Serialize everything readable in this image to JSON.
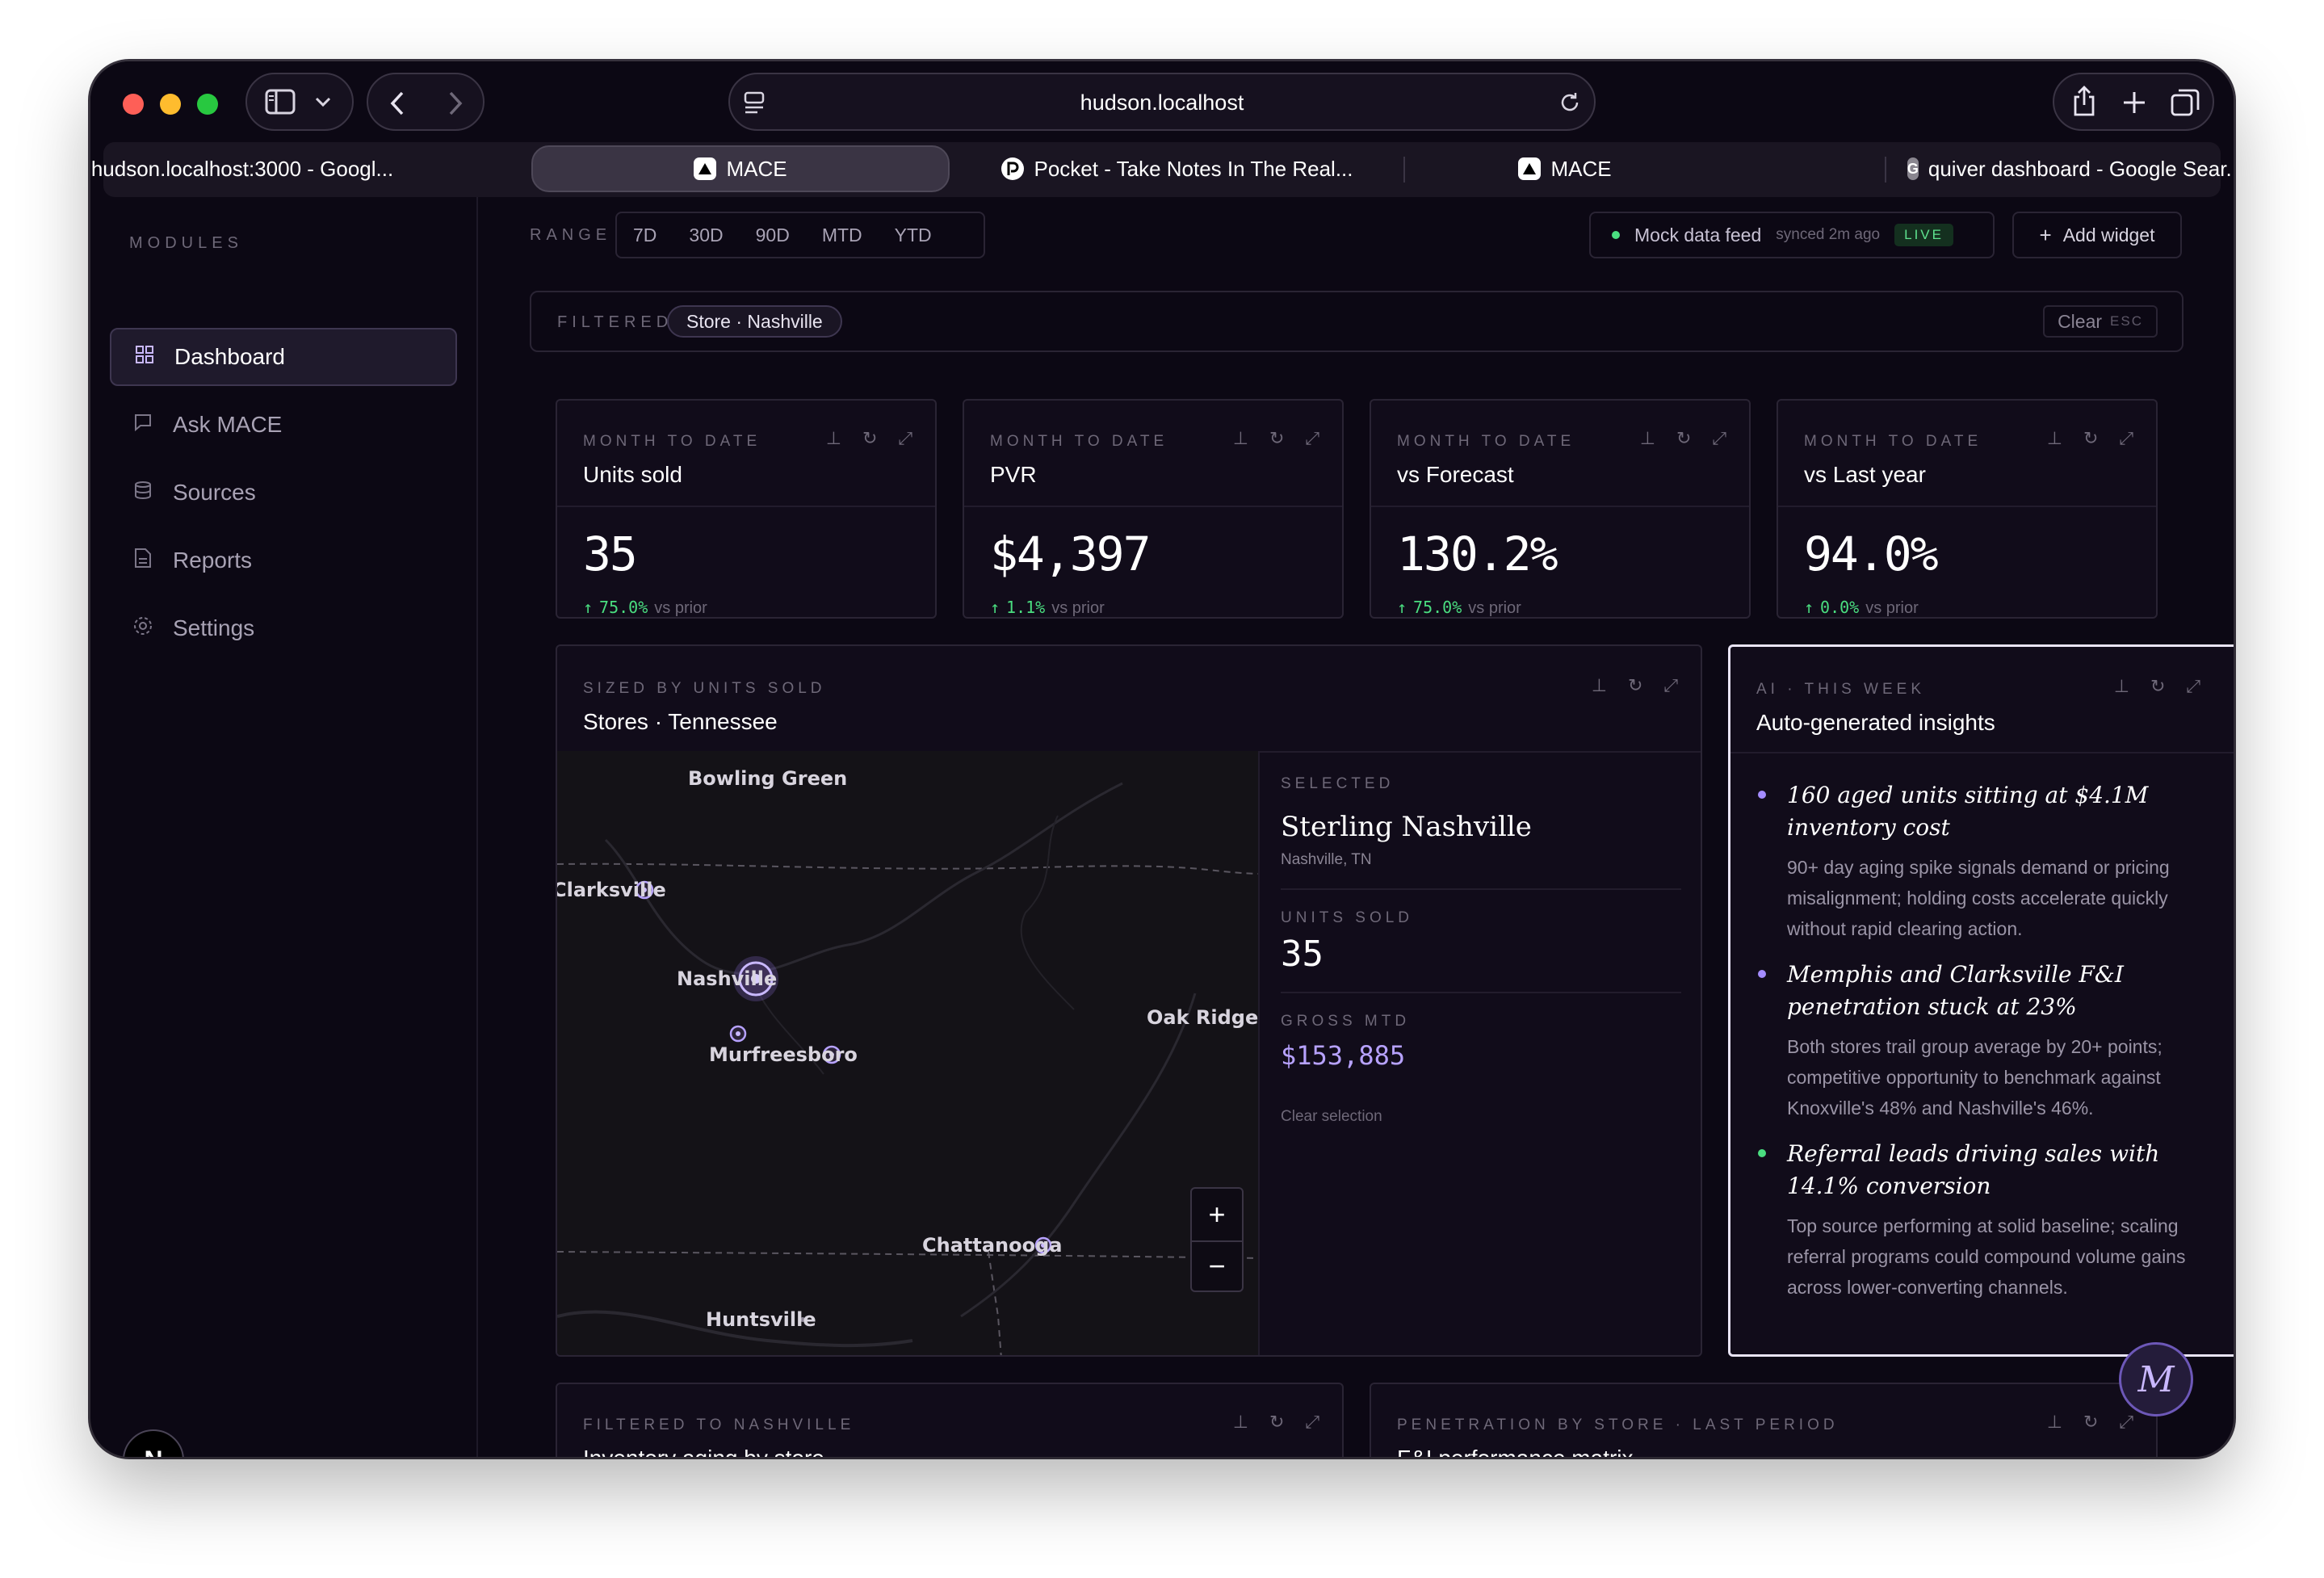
{
  "browser": {
    "url": "hudson.localhost",
    "tabs": [
      {
        "label": "hudson.localhost:3000 - Googl...",
        "favicon": "G",
        "active": false
      },
      {
        "label": "MACE",
        "favicon": "mace-logo",
        "active": true
      },
      {
        "label": "Pocket - Take Notes In The Real...",
        "favicon": "pocket-logo",
        "active": false
      },
      {
        "label": "MACE",
        "favicon": "mace-logo",
        "active": false
      },
      {
        "label": "quiver dashboard - Google Sear...",
        "favicon": "G",
        "active": false
      }
    ],
    "favicon_g": "G"
  },
  "sidebar": {
    "section_label": "MODULES",
    "items": [
      {
        "label": "Dashboard",
        "icon": "grid-icon",
        "active": true
      },
      {
        "label": "Ask MACE",
        "icon": "chat-icon",
        "active": false
      },
      {
        "label": "Sources",
        "icon": "database-icon",
        "active": false
      },
      {
        "label": "Reports",
        "icon": "document-icon",
        "active": false
      },
      {
        "label": "Settings",
        "icon": "gear-icon",
        "active": false
      }
    ],
    "avatar_letter": "N"
  },
  "toolbar": {
    "range_label": "RANGE",
    "ranges": [
      "7D",
      "30D",
      "90D",
      "MTD",
      "YTD"
    ],
    "feed_label": "Mock data feed",
    "synced": "synced 2m ago",
    "live": "LIVE",
    "add_widget": "Add widget"
  },
  "filter": {
    "label": "FILTERED",
    "chip": "Store · Nashville",
    "clear": "Clear",
    "esc": "ESC"
  },
  "kpis": [
    {
      "eyebrow": "MONTH TO DATE",
      "title": "Units sold",
      "value": "35",
      "delta": "75.0%",
      "delta_suffix": "vs prior"
    },
    {
      "eyebrow": "MONTH TO DATE",
      "title": "PVR",
      "value": "$4,397",
      "delta": "1.1%",
      "delta_suffix": "vs prior"
    },
    {
      "eyebrow": "MONTH TO DATE",
      "title": "vs Forecast",
      "value": "130.2%",
      "delta": "75.0%",
      "delta_suffix": "vs prior"
    },
    {
      "eyebrow": "MONTH TO DATE",
      "title": "vs Last year",
      "value": "94.0%",
      "delta": "0.0%",
      "delta_suffix": "vs prior"
    }
  ],
  "map_widget": {
    "eyebrow": "SIZED BY UNITS SOLD",
    "title": "Stores · Tennessee",
    "cities": [
      "Bowling Green",
      "Clarksville",
      "Nashville",
      "Murfreesboro",
      "Oak Ridge",
      "Chattanooga",
      "Huntsville"
    ],
    "zoom_in": "+",
    "zoom_out": "−",
    "selected": {
      "eyebrow": "SELECTED",
      "name": "Sterling Nashville",
      "location": "Nashville, TN",
      "units_label": "UNITS SOLD",
      "units_value": "35",
      "gross_label": "GROSS MTD",
      "gross_value": "$153,885",
      "clear": "Clear selection"
    }
  },
  "insights_widget": {
    "eyebrow": "AI · THIS WEEK",
    "title": "Auto-generated insights",
    "items": [
      {
        "title": "160 aged units sitting at $4.1M inventory cost",
        "body": "90+ day aging spike signals demand or pricing misalignment; holding costs accelerate quickly without rapid clearing action.",
        "color": "#a48cff"
      },
      {
        "title": "Memphis and Clarksville F&I penetration stuck at 23%",
        "body": "Both stores trail group average by 20+ points; competitive opportunity to benchmark against Knoxville's 48% and Nashville's 46%.",
        "color": "#a48cff"
      },
      {
        "title": "Referral leads driving sales with 14.1% conversion",
        "body": "Top source performing at solid baseline; scaling referral programs could compound volume gains across lower-converting channels.",
        "color": "#4ade80"
      }
    ]
  },
  "bottom_widgets": [
    {
      "eyebrow": "FILTERED TO NASHVILLE",
      "title": "Inventory aging by store"
    },
    {
      "eyebrow": "PENETRATION BY STORE · LAST PERIOD",
      "title": "F&I performance matrix"
    }
  ],
  "assistant_badge": "M",
  "colors": {
    "accent": "#b7a2ff",
    "positive": "#4ade80",
    "background": "#0c0814"
  }
}
